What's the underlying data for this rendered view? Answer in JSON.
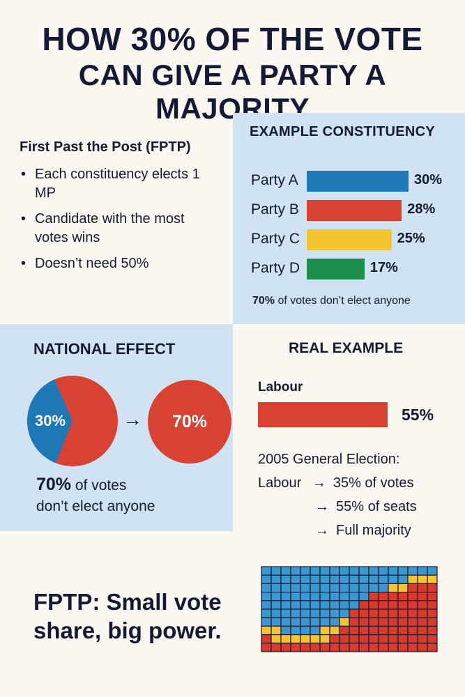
{
  "title": {
    "line1": "HOW 30% OF THE VOTE",
    "line2": "CAN GIVE A PARTY A MAJORITY"
  },
  "fptp": {
    "heading": "First Past the Post (FPTP)",
    "bullets": [
      "Each constituency elects 1 MP",
      "Candidate with the most votes wins",
      "Doesn’t need 50%"
    ]
  },
  "example": {
    "heading": "EXAMPLE CONSTITUENCY",
    "parties": [
      {
        "name": "Party A",
        "value": 30,
        "label": "30%",
        "color": "#1d78b5"
      },
      {
        "name": "Party B",
        "value": 28,
        "label": "28%",
        "color": "#d94133"
      },
      {
        "name": "Party C",
        "value": 25,
        "label": "25%",
        "color": "#f5c431"
      },
      {
        "name": "Party D",
        "value": 17,
        "label": "17%",
        "color": "#1e8e4d"
      }
    ],
    "note_bold": "70%",
    "note_rest": " of votes don’t elect anyone"
  },
  "national": {
    "heading": "NATIONAL EFFECT",
    "pie_share": 30,
    "pie_label": "30%",
    "arrow": "→",
    "result_label": "70%",
    "note_bold": "70%",
    "note_line1_rest": " of votes",
    "note_line2": "don’t elect anyone",
    "colors": {
      "blue": "#1d78b5",
      "red": "#d94133"
    }
  },
  "real": {
    "heading": "REAL EXAMPLE",
    "party": "Labour",
    "bar_value": 55,
    "bar_label": "55%",
    "election": "2005 General Election:",
    "arrow": "→",
    "line1_party": "Labour",
    "line1_text": "35% of votes",
    "line2_text": "55% of seats",
    "line3_text": "Full majority"
  },
  "tagline": "FPTP: Small vote share, big power.",
  "seats": {
    "colors": {
      "blue": "#3a97cf",
      "red": "#d93a2e",
      "yellow": "#f5c431"
    },
    "rows": [
      "BBBBBBBBBBBBBBBBBB",
      "BBBBBBBBBBBBBBBYYY",
      "BBBBBBBBBBBBBYYRRR",
      "BBBBBBBBBBBRRRRRRR",
      "BBBBBBBBBBRRRRRRRR",
      "BBBBBBBBBRRRRRRRRR",
      "BBBBBBBBYRRRRRRRRR",
      "YYBBBBYYRRRRRRRRRR",
      "RYYYYYYRRRRRRRRRRR",
      "RRRRRRRRRRRRRRRRRR"
    ]
  }
}
